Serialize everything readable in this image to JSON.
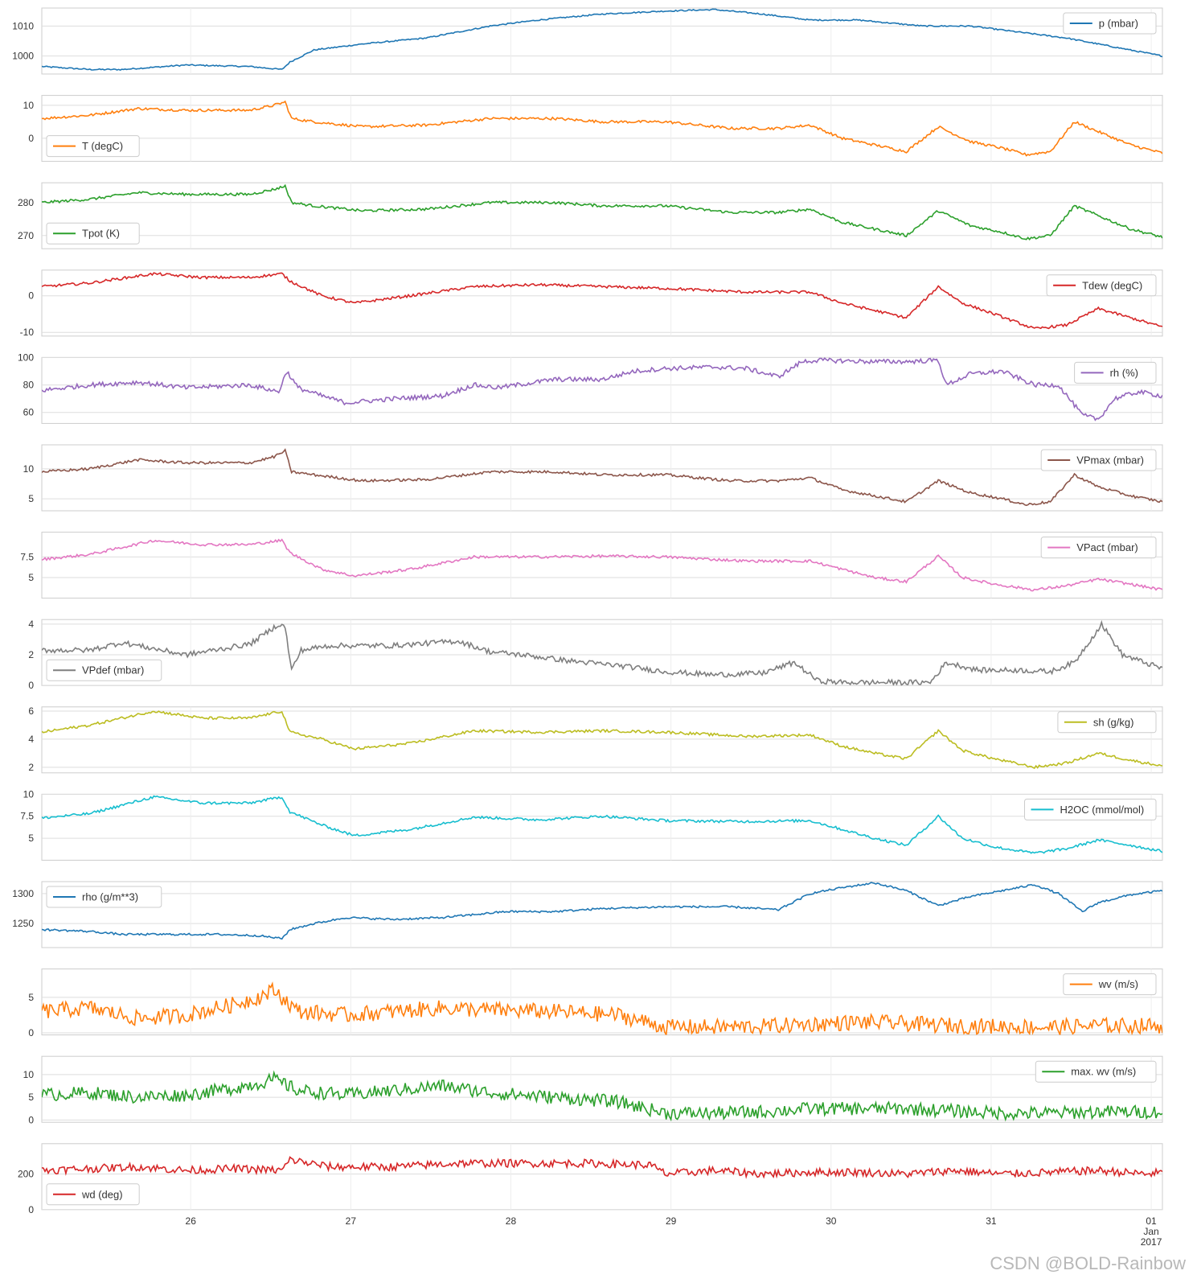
{
  "watermark": "CSDN @BOLD-Rainbow",
  "chart_data": {
    "type": "line",
    "x_ticks": [
      "26",
      "27",
      "28",
      "29",
      "30",
      "31",
      "01\nJan\n2017"
    ],
    "x_range": [
      "2016-12-25",
      "2017-01-01"
    ],
    "grid": true,
    "panels": [
      {
        "name": "p (mbar)",
        "color": "#1f77b4",
        "legend": "top-right",
        "yticks": [
          1000,
          1010
        ],
        "ylim": [
          994,
          1016
        ],
        "x": [
          0,
          0.3,
          0.5,
          0.9,
          1.3,
          1.5,
          1.55,
          1.7,
          2.0,
          2.4,
          2.8,
          3.1,
          3.5,
          3.9,
          4.2,
          4.5,
          4.8,
          5.1,
          5.5,
          5.8,
          6.1,
          6.4,
          7.0
        ],
        "y": [
          996.5,
          995.5,
          995.5,
          997,
          996.5,
          995.5,
          998,
          1002,
          1004,
          1006,
          1010,
          1012,
          1014,
          1015,
          1015.5,
          1014,
          1012,
          1012,
          1010,
          1010,
          1008,
          1006,
          1000
        ]
      },
      {
        "name": "T (degC)",
        "color": "#ff7f0e",
        "legend": "bottom-left",
        "yticks": [
          0,
          10
        ],
        "ylim": [
          -7,
          13
        ],
        "x": [
          0,
          0.3,
          0.6,
          0.9,
          1.3,
          1.45,
          1.52,
          1.56,
          1.7,
          2.0,
          2.4,
          2.8,
          3.2,
          3.5,
          3.9,
          4.3,
          4.6,
          4.8,
          5.0,
          5.2,
          5.4,
          5.6,
          5.8,
          6.0,
          6.15,
          6.3,
          6.45,
          6.6,
          6.8,
          7.0
        ],
        "y": [
          6,
          7,
          9,
          8.5,
          8.5,
          10,
          11,
          6,
          5,
          3.5,
          4,
          6,
          6,
          5,
          5,
          3,
          3,
          4,
          0,
          -2,
          -4,
          3.5,
          -1,
          -3,
          -5,
          -4,
          5,
          2,
          -2,
          -4.5
        ]
      },
      {
        "name": "Tpot (K)",
        "color": "#2ca02c",
        "legend": "bottom-left",
        "yticks": [
          270,
          280
        ],
        "ylim": [
          266,
          286
        ],
        "x": [
          0,
          0.3,
          0.6,
          0.9,
          1.3,
          1.45,
          1.52,
          1.56,
          1.7,
          2.0,
          2.4,
          2.8,
          3.2,
          3.5,
          3.9,
          4.3,
          4.6,
          4.8,
          5.0,
          5.2,
          5.4,
          5.6,
          5.8,
          6.0,
          6.15,
          6.3,
          6.45,
          6.6,
          6.8,
          7.0
        ],
        "y": [
          280,
          281,
          283,
          282.5,
          282.5,
          284,
          285,
          280,
          279,
          277.5,
          278,
          280,
          280,
          279,
          279,
          277,
          277,
          278,
          274,
          272,
          270,
          277.5,
          273,
          271,
          269,
          270,
          279,
          276,
          272,
          269.5
        ]
      },
      {
        "name": "Tdew (degC)",
        "color": "#d62728",
        "legend": "top-right",
        "yticks": [
          -10,
          0
        ],
        "ylim": [
          -11,
          7
        ],
        "x": [
          0,
          0.3,
          0.7,
          1.0,
          1.3,
          1.5,
          1.55,
          1.75,
          1.95,
          2.3,
          2.7,
          3.1,
          3.5,
          3.9,
          4.4,
          4.8,
          5.0,
          5.2,
          5.4,
          5.6,
          5.75,
          5.95,
          6.2,
          6.4,
          6.6,
          6.8,
          7.0
        ],
        "y": [
          2.5,
          3.5,
          6,
          5,
          5,
          6,
          4,
          0,
          -2,
          0,
          2.5,
          3,
          2.5,
          2,
          1,
          1,
          -2,
          -4,
          -6,
          2.5,
          -2,
          -5,
          -9,
          -8,
          -3.5,
          -6,
          -8.5
        ]
      },
      {
        "name": "rh (%)",
        "color": "#9467bd",
        "legend": "top-right",
        "yticks": [
          60,
          80,
          100
        ],
        "ylim": [
          52,
          100
        ],
        "x": [
          0,
          0.3,
          0.6,
          0.9,
          1.3,
          1.48,
          1.53,
          1.6,
          1.75,
          1.9,
          2.2,
          2.5,
          2.7,
          2.85,
          3.2,
          3.5,
          3.7,
          3.9,
          4.2,
          4.4,
          4.6,
          4.75,
          4.85,
          5.2,
          5.4,
          5.6,
          5.65,
          5.8,
          6.0,
          6.2,
          6.35,
          6.5,
          6.6,
          6.7,
          6.85,
          7.0
        ],
        "y": [
          76,
          80,
          82,
          78,
          80,
          75,
          90,
          78,
          72,
          67,
          70,
          72,
          80,
          78,
          84,
          84,
          90,
          92,
          93,
          92,
          86,
          97,
          98,
          97,
          97,
          98,
          80,
          88,
          90,
          80,
          80,
          58,
          55,
          70,
          75,
          72
        ]
      },
      {
        "name": "VPmax (mbar)",
        "color": "#8c564b",
        "legend": "top-right",
        "yticks": [
          5,
          10
        ],
        "ylim": [
          3,
          14
        ],
        "x": [
          0,
          0.3,
          0.6,
          0.9,
          1.3,
          1.45,
          1.52,
          1.56,
          1.7,
          2.0,
          2.4,
          2.8,
          3.2,
          3.5,
          3.9,
          4.3,
          4.6,
          4.8,
          5.0,
          5.2,
          5.4,
          5.6,
          5.8,
          6.0,
          6.15,
          6.3,
          6.45,
          6.6,
          6.8,
          7.0
        ],
        "y": [
          9.5,
          10,
          11.5,
          11,
          11,
          12,
          13,
          9.5,
          9,
          8,
          8.2,
          9.5,
          9.5,
          9,
          9,
          8,
          8,
          8.5,
          6.5,
          5.5,
          4.5,
          8,
          6,
          5,
          4,
          4.5,
          9,
          7,
          5.5,
          4.5
        ]
      },
      {
        "name": "VPact (mbar)",
        "color": "#e377c2",
        "legend": "top-right",
        "yticks": [
          5.0,
          7.5
        ],
        "ylim": [
          2.5,
          10.5
        ],
        "x": [
          0,
          0.3,
          0.7,
          1.0,
          1.3,
          1.5,
          1.55,
          1.75,
          1.95,
          2.3,
          2.7,
          3.1,
          3.5,
          3.9,
          4.4,
          4.8,
          5.0,
          5.2,
          5.4,
          5.6,
          5.75,
          5.95,
          6.2,
          6.4,
          6.6,
          6.8,
          7.0
        ],
        "y": [
          7.2,
          7.8,
          9.5,
          9,
          9,
          9.5,
          8,
          6,
          5.2,
          6,
          7.5,
          7.5,
          7.6,
          7.5,
          7,
          7,
          6,
          5,
          4.5,
          7.6,
          5,
          4.2,
          3.5,
          4,
          4.8,
          4.2,
          3.5
        ]
      },
      {
        "name": "VPdef (mbar)",
        "color": "#7f7f7f",
        "legend": "bottom-left",
        "yticks": [
          0,
          2,
          4
        ],
        "ylim": [
          0,
          4.3
        ],
        "x": [
          0,
          0.3,
          0.5,
          0.7,
          0.9,
          1.3,
          1.48,
          1.52,
          1.56,
          1.62,
          1.8,
          2.2,
          2.6,
          2.8,
          3.0,
          3.3,
          3.6,
          3.9,
          4.2,
          4.5,
          4.7,
          4.85,
          5.0,
          5.3,
          5.55,
          5.65,
          5.85,
          6.1,
          6.3,
          6.45,
          6.62,
          6.75,
          7.0
        ],
        "y": [
          2.3,
          2.3,
          2.8,
          2.4,
          2.0,
          2.7,
          4.0,
          3.8,
          1.0,
          2.3,
          2.6,
          2.6,
          2.9,
          2.2,
          2.0,
          1.6,
          1.3,
          0.9,
          0.7,
          0.8,
          1.5,
          0.3,
          0.2,
          0.2,
          0.2,
          1.5,
          1.0,
          1.0,
          0.9,
          1.5,
          4.0,
          2.0,
          1.1
        ]
      },
      {
        "name": "sh (g/kg)",
        "color": "#bcbd22",
        "legend": "top-right",
        "yticks": [
          2,
          4,
          6
        ],
        "ylim": [
          1.6,
          6.3
        ],
        "x": [
          0,
          0.3,
          0.7,
          1.0,
          1.3,
          1.5,
          1.55,
          1.75,
          1.95,
          2.3,
          2.7,
          3.1,
          3.5,
          3.9,
          4.4,
          4.8,
          5.0,
          5.2,
          5.4,
          5.6,
          5.75,
          5.95,
          6.2,
          6.4,
          6.6,
          6.8,
          7.0
        ],
        "y": [
          4.5,
          5,
          6,
          5.5,
          5.5,
          6,
          4.5,
          4,
          3.3,
          3.7,
          4.6,
          4.5,
          4.6,
          4.5,
          4.2,
          4.3,
          3.5,
          3.0,
          2.6,
          4.6,
          3.2,
          2.6,
          2.0,
          2.3,
          3.0,
          2.5,
          2.1
        ]
      },
      {
        "name": "H2OC (mmol/mol)",
        "color": "#17becf",
        "legend": "top-right",
        "yticks": [
          5.0,
          7.5,
          10.0
        ],
        "ylim": [
          2.5,
          10.0
        ],
        "x": [
          0,
          0.3,
          0.7,
          1.0,
          1.3,
          1.5,
          1.55,
          1.75,
          1.95,
          2.3,
          2.7,
          3.1,
          3.5,
          3.9,
          4.4,
          4.8,
          5.0,
          5.2,
          5.4,
          5.6,
          5.75,
          5.95,
          6.2,
          6.4,
          6.6,
          6.8,
          7.0
        ],
        "y": [
          7.3,
          7.8,
          9.7,
          9,
          9,
          9.7,
          8,
          6.5,
          5.3,
          6.0,
          7.4,
          7.1,
          7.5,
          7,
          6.9,
          7.0,
          6.0,
          5.0,
          4.2,
          7.5,
          5.0,
          4.0,
          3.3,
          3.8,
          4.8,
          4.2,
          3.5
        ]
      },
      {
        "name": "rho (g/m**3)",
        "color": "#1f77b4",
        "legend": "top-left",
        "yticks": [
          1250,
          1300
        ],
        "ylim": [
          1210,
          1320
        ],
        "x": [
          0,
          0.3,
          0.5,
          0.8,
          1.1,
          1.35,
          1.5,
          1.55,
          1.7,
          1.9,
          2.2,
          2.5,
          2.9,
          3.2,
          3.5,
          3.9,
          4.3,
          4.6,
          4.8,
          5.0,
          5.2,
          5.4,
          5.6,
          5.8,
          6.0,
          6.2,
          6.35,
          6.5,
          6.6,
          6.8,
          7.0
        ],
        "y": [
          1240,
          1237,
          1232,
          1232,
          1232,
          1230,
          1225,
          1240,
          1250,
          1260,
          1257,
          1260,
          1270,
          1270,
          1275,
          1278,
          1278,
          1273,
          1300,
          1310,
          1318,
          1305,
          1280,
          1295,
          1305,
          1315,
          1300,
          1270,
          1285,
          1298,
          1305
        ]
      },
      {
        "name": "wv (m/s)",
        "color": "#ff7f0e",
        "legend": "top-right",
        "yticks": [
          0,
          5
        ],
        "ylim": [
          -0.3,
          9
        ],
        "x": [
          0,
          0.3,
          0.6,
          0.9,
          1.2,
          1.35,
          1.45,
          1.6,
          1.9,
          2.2,
          2.5,
          2.8,
          3.2,
          3.6,
          3.9,
          4.2,
          4.5,
          4.8,
          5.1,
          5.4,
          5.7,
          6.0,
          6.3,
          6.6,
          7.0
        ],
        "y": [
          3,
          3.5,
          2,
          2.5,
          4,
          5,
          6,
          3,
          2.5,
          3,
          3.5,
          3.2,
          3,
          2.5,
          0.8,
          0.8,
          0.9,
          1.2,
          1.5,
          1.3,
          1.0,
          0.9,
          0.8,
          1.0,
          1.0
        ]
      },
      {
        "name": "max. wv (m/s)",
        "color": "#2ca02c",
        "legend": "top-right",
        "yticks": [
          0,
          5,
          10
        ],
        "ylim": [
          -0.5,
          14
        ],
        "x": [
          0,
          0.3,
          0.6,
          0.9,
          1.2,
          1.35,
          1.45,
          1.6,
          1.9,
          2.2,
          2.5,
          2.8,
          3.2,
          3.6,
          3.9,
          4.2,
          4.5,
          4.8,
          5.1,
          5.4,
          5.7,
          6.0,
          6.3,
          6.6,
          7.0
        ],
        "y": [
          5.5,
          6,
          5,
          5.5,
          7,
          8,
          9,
          6.5,
          5.5,
          6.5,
          7.5,
          6,
          5,
          4,
          1.5,
          1.5,
          1.8,
          2.5,
          2.5,
          2.5,
          2,
          1.5,
          1.5,
          1.8,
          1.8
        ]
      },
      {
        "name": "wd (deg)",
        "color": "#d62728",
        "legend": "bottom-left",
        "yticks": [
          0,
          200
        ],
        "ylim": [
          0,
          370
        ],
        "x": [
          0,
          0.3,
          0.6,
          0.9,
          1.2,
          1.5,
          1.55,
          1.8,
          2.2,
          2.6,
          3.0,
          3.4,
          3.8,
          3.9,
          4.2,
          4.5,
          4.8,
          5.1,
          5.4,
          5.7,
          6.0,
          6.3,
          6.6,
          6.9,
          7.0
        ],
        "y": [
          220,
          230,
          240,
          220,
          230,
          220,
          280,
          240,
          240,
          260,
          260,
          260,
          250,
          200,
          220,
          200,
          210,
          210,
          200,
          220,
          200,
          210,
          220,
          200,
          210
        ]
      }
    ]
  }
}
